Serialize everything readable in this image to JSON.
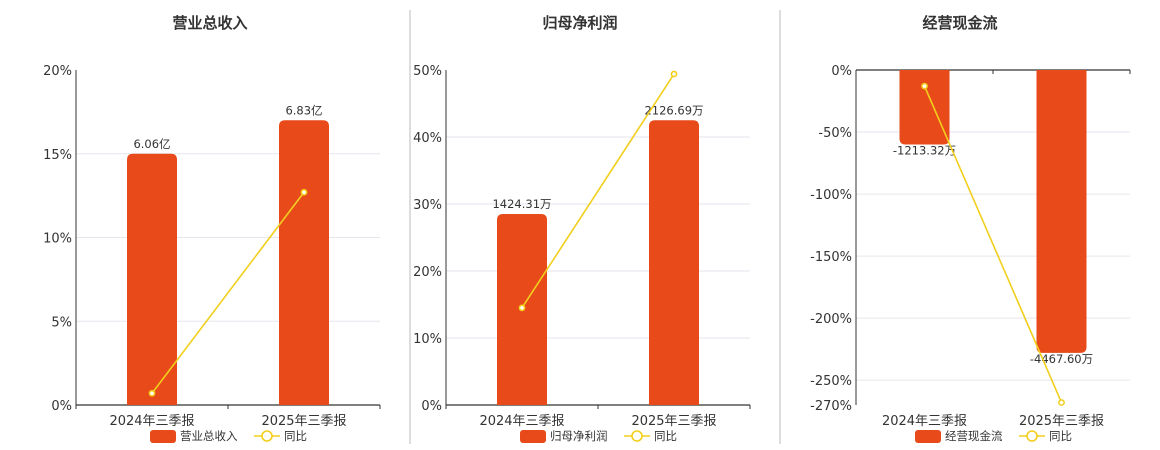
{
  "colors": {
    "bar": "#E84A1A",
    "line": "#F2CF1D",
    "grid": "#E6E6EE",
    "axis": "#333333",
    "divider": "#BBBBBB"
  },
  "chart_data": [
    {
      "type": "bar",
      "title": "营业总收入",
      "categories": [
        "2024年三季报",
        "2025年三季报"
      ],
      "series": [
        {
          "name": "营业总收入",
          "type": "bar",
          "data_labels": [
            "6.06亿",
            "6.83亿"
          ]
        },
        {
          "name": "同比",
          "type": "line",
          "values": [
            0.7,
            12.7
          ]
        }
      ],
      "yticks": [
        "0%",
        "5%",
        "10%",
        "15%",
        "20%"
      ],
      "ylim": [
        0,
        20
      ],
      "bar_heights_on_pct_axis": [
        15.0,
        17.0
      ],
      "grid": true,
      "legend_position": "bottom"
    },
    {
      "type": "bar",
      "title": "归母净利润",
      "categories": [
        "2024年三季报",
        "2025年三季报"
      ],
      "series": [
        {
          "name": "归母净利润",
          "type": "bar",
          "data_labels": [
            "1424.31万",
            "2126.69万"
          ]
        },
        {
          "name": "同比",
          "type": "line",
          "values": [
            14.5,
            49.4
          ]
        }
      ],
      "yticks": [
        "0%",
        "10%",
        "20%",
        "30%",
        "40%",
        "50%"
      ],
      "ylim": [
        0,
        50
      ],
      "bar_heights_on_pct_axis": [
        28.5,
        42.5
      ],
      "grid": true,
      "legend_position": "bottom"
    },
    {
      "type": "bar",
      "title": "经营现金流",
      "categories": [
        "2024年三季报",
        "2025年三季报"
      ],
      "series": [
        {
          "name": "经营现金流",
          "type": "bar",
          "data_labels": [
            "-1213.32万",
            "-4467.60万"
          ]
        },
        {
          "name": "同比",
          "type": "line",
          "values": [
            -13,
            -268
          ]
        }
      ],
      "yticks": [
        "0%",
        "-50%",
        "-100%",
        "-150%",
        "-200%",
        "-250%",
        "-270%"
      ],
      "ylim": [
        -270,
        0
      ],
      "bar_heights_on_pct_axis": [
        -60,
        -228
      ],
      "grid": true,
      "legend_position": "bottom"
    }
  ]
}
